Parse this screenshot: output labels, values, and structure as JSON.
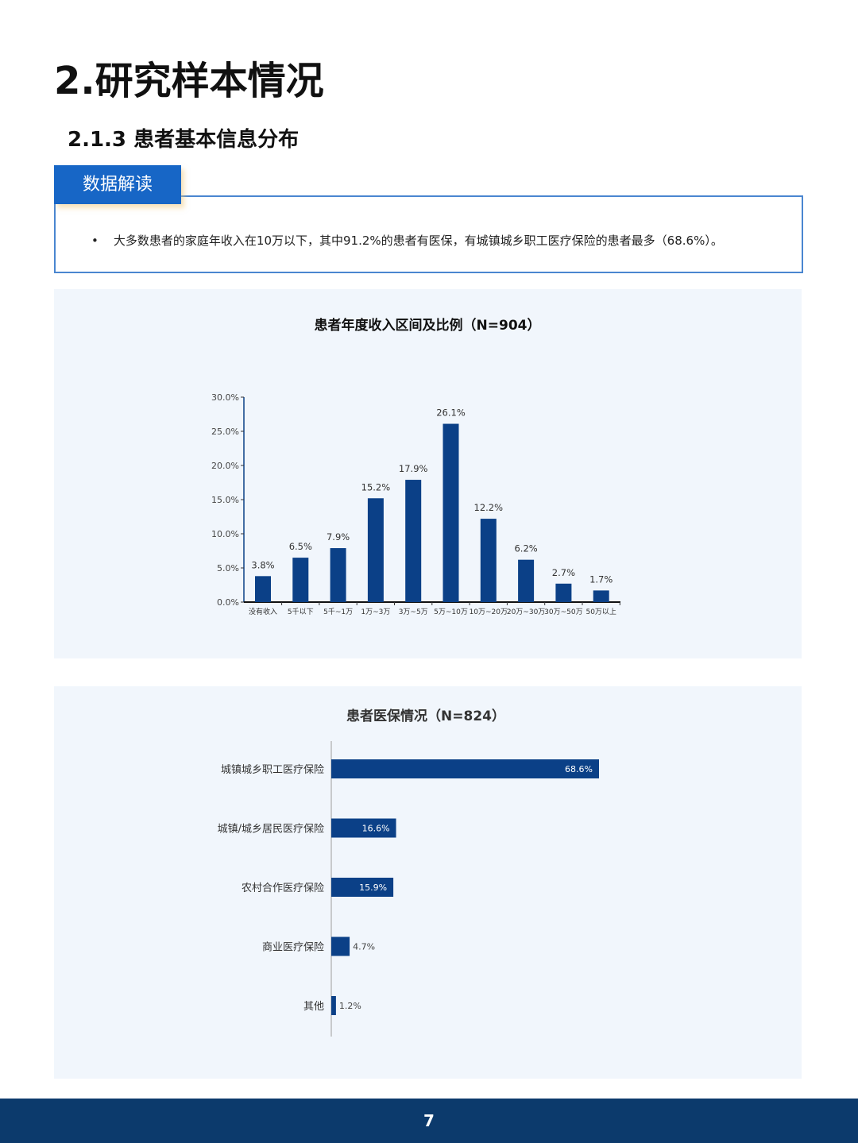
{
  "page": {
    "title": "2.研究样本情况",
    "subtitle": "2.1.3  患者基本信息分布",
    "page_number": "7"
  },
  "insight": {
    "tab_label": "数据解读",
    "bullets": [
      "大多数患者的家庭年收入在10万以下，其中91.2%的患者有医保，有城镇城乡职工医疗保险的患者最多（68.6%）。"
    ]
  },
  "colors": {
    "bar": "#0b4087",
    "accent": "#1766c6",
    "footer": "#0c3a6c",
    "panel": "#f1f6fc"
  },
  "chart_data": [
    {
      "type": "bar",
      "title": "患者年度收入区间及比例（N=904）",
      "categories": [
        "没有收入",
        "5千以下",
        "5千~1万",
        "1万~3万",
        "3万~5万",
        "5万~10万",
        "10万~20万",
        "20万~30万",
        "30万~50万",
        "50万以上"
      ],
      "values": [
        3.8,
        6.5,
        7.9,
        15.2,
        17.9,
        26.1,
        12.2,
        6.2,
        2.7,
        1.7
      ],
      "ylim": [
        0,
        30
      ],
      "yticks": [
        "0.0%",
        "5.0%",
        "10.0%",
        "15.0%",
        "20.0%",
        "25.0%",
        "30.0%"
      ],
      "grid": false
    },
    {
      "type": "bar",
      "orientation": "horizontal",
      "title": "患者医保情况（N=824）",
      "categories": [
        "城镇城乡职工医疗保险",
        "城镇/城乡居民医疗保险",
        "农村合作医疗保险",
        "商业医疗保险",
        "其他"
      ],
      "values": [
        68.6,
        16.6,
        15.9,
        4.7,
        1.2
      ],
      "grid": false
    }
  ]
}
